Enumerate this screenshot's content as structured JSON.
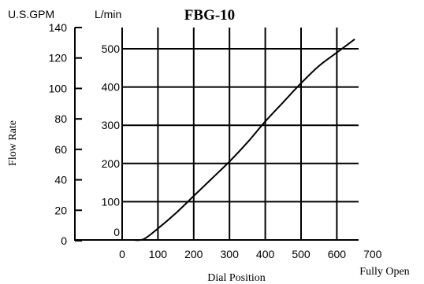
{
  "chart_data": {
    "type": "line",
    "title": "FBG-10",
    "ylabel": "Flow Rate",
    "xlabel": "Dial Position",
    "x_end_label": "Fully Open",
    "left_axis": {
      "unit": "U.S.GPM",
      "ticks": [
        "0",
        "20",
        "40",
        "60",
        "80",
        "100",
        "120",
        "140"
      ],
      "range": [
        0,
        140
      ]
    },
    "right_axis": {
      "unit": "L/min",
      "ticks": [
        "0",
        "100",
        "200",
        "300",
        "400",
        "500"
      ],
      "range": [
        0,
        500
      ]
    },
    "x_axis": {
      "ticks": [
        "0",
        "100",
        "200",
        "300",
        "400",
        "500",
        "600",
        "700"
      ],
      "range": [
        0,
        700
      ]
    },
    "grid": true,
    "series": [
      {
        "x": [
          30,
          60,
          100,
          150,
          200,
          250,
          300,
          350,
          400,
          450,
          500,
          550,
          600,
          650
        ],
        "y": [
          0,
          2,
          30,
          70,
          115,
          160,
          205,
          255,
          310,
          360,
          410,
          455,
          490,
          525
        ]
      }
    ]
  }
}
